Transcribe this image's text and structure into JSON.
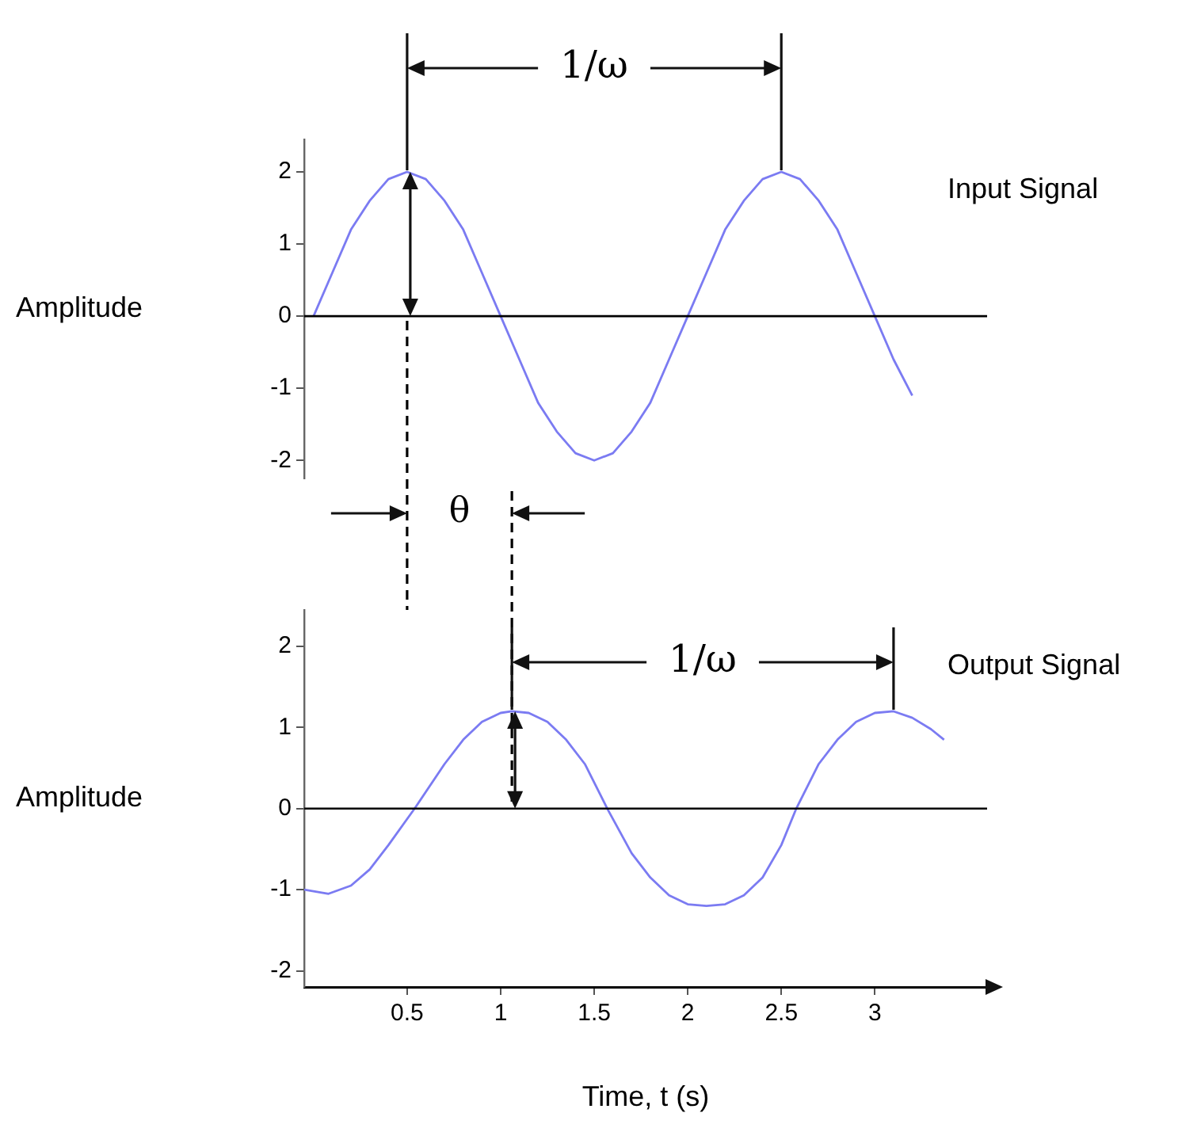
{
  "chart_data": [
    {
      "type": "line",
      "ylabel": "Amplitude",
      "xlim": [
        -0.05,
        3.6
      ],
      "ylim": [
        -2.25,
        2.45
      ],
      "yticks": [
        -2,
        -1,
        0,
        1,
        2
      ],
      "tick_labels": "y",
      "legend": false,
      "marker": "none",
      "x": [
        0,
        0.1,
        0.2,
        0.3,
        0.4,
        0.5,
        0.6,
        0.7,
        0.8,
        0.9,
        1,
        1.1,
        1.2,
        1.3,
        1.4,
        1.5,
        1.6,
        1.7,
        1.8,
        1.9,
        2,
        2.1,
        2.2,
        2.3,
        2.4,
        2.5,
        2.6,
        2.7,
        2.8,
        2.9,
        3,
        3.1,
        3.2
      ],
      "series": [
        {
          "name": "Input Signal",
          "color": "#7b7bf2",
          "values": [
            0,
            0.6,
            1.2,
            1.6,
            1.9,
            2,
            1.9,
            1.6,
            1.2,
            0.6,
            0,
            -0.6,
            -1.2,
            -1.6,
            -1.9,
            -2,
            -1.9,
            -1.6,
            -1.2,
            -0.6,
            0,
            0.6,
            1.2,
            1.6,
            1.9,
            2,
            1.9,
            1.6,
            1.2,
            0.6,
            0,
            -0.6,
            -1.1
          ]
        }
      ],
      "ref_lines": [
        {
          "axis": "y",
          "value": 0
        },
        {
          "axis": "x",
          "value": 0.5,
          "line_style": "dashed"
        }
      ],
      "annotations": [
        "1/ω",
        "θ"
      ]
    },
    {
      "type": "line",
      "ylabel": "Amplitude",
      "xlabel": "Time, t (s)",
      "xlim": [
        -0.05,
        3.6
      ],
      "xticks": [
        0.5,
        1,
        1.5,
        2,
        2.5,
        3
      ],
      "ylim": [
        -2.2,
        2.45
      ],
      "yticks": [
        -2,
        -1,
        0,
        1,
        2
      ],
      "legend": false,
      "marker": "none",
      "x": [
        -0.05,
        0.08,
        0.2,
        0.3,
        0.4,
        0.54,
        0.7,
        0.8,
        0.9,
        1,
        1.06,
        1.15,
        1.25,
        1.35,
        1.45,
        1.57,
        1.7,
        1.8,
        1.9,
        2,
        2.1,
        2.2,
        2.3,
        2.4,
        2.5,
        2.58,
        2.7,
        2.8,
        2.9,
        3,
        3.1,
        3.2,
        3.3,
        3.37
      ],
      "series": [
        {
          "name": "Output Signal",
          "color": "#7b7bf2",
          "values": [
            -1,
            -1.05,
            -0.95,
            -0.75,
            -0.45,
            0,
            0.55,
            0.85,
            1.07,
            1.18,
            1.2,
            1.18,
            1.07,
            0.85,
            0.55,
            0,
            -0.55,
            -0.85,
            -1.07,
            -1.18,
            -1.2,
            -1.18,
            -1.07,
            -0.85,
            -0.45,
            0,
            0.55,
            0.85,
            1.07,
            1.18,
            1.2,
            1.12,
            0.98,
            0.85
          ]
        }
      ],
      "ref_lines": [
        {
          "axis": "y",
          "value": 0
        },
        {
          "axis": "x",
          "value": 1.06,
          "line_style": "dashed"
        }
      ],
      "annotations": [
        "1/ω"
      ]
    }
  ]
}
